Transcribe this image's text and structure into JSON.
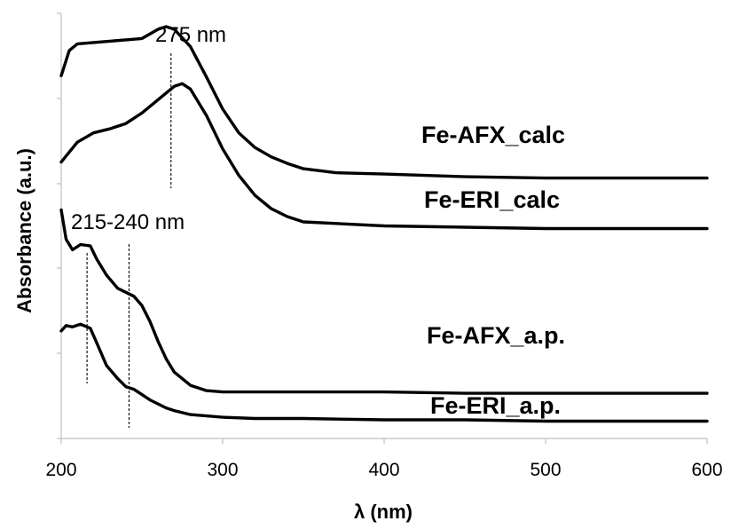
{
  "chart_data": {
    "type": "line",
    "xlabel": "λ (nm)",
    "ylabel": "Absorbance (a.u.)",
    "xlim": [
      200,
      600
    ],
    "x_ticks": [
      "200",
      "300",
      "400",
      "500",
      "600"
    ],
    "y_ticks_labeled": false,
    "grid": false,
    "series": [
      {
        "name": "Fe-AFX_calc",
        "x": [
          200,
          205,
          210,
          220,
          230,
          240,
          250,
          260,
          265,
          270,
          280,
          290,
          300,
          310,
          320,
          330,
          340,
          350,
          370,
          400,
          450,
          500,
          550,
          600
        ],
        "y": [
          2.63,
          2.82,
          2.87,
          2.88,
          2.89,
          2.9,
          2.91,
          2.98,
          3.0,
          2.98,
          2.85,
          2.62,
          2.38,
          2.2,
          2.09,
          2.02,
          1.97,
          1.93,
          1.9,
          1.89,
          1.87,
          1.86,
          1.86,
          1.86
        ]
      },
      {
        "name": "Fe-ERI_calc",
        "x": [
          200,
          210,
          220,
          230,
          240,
          250,
          260,
          270,
          275,
          280,
          290,
          300,
          310,
          320,
          330,
          340,
          350,
          400,
          450,
          500,
          550,
          600
        ],
        "y": [
          1.98,
          2.13,
          2.2,
          2.23,
          2.27,
          2.35,
          2.45,
          2.55,
          2.57,
          2.53,
          2.33,
          2.08,
          1.88,
          1.73,
          1.63,
          1.57,
          1.53,
          1.5,
          1.49,
          1.48,
          1.48,
          1.48
        ]
      },
      {
        "name": "Fe-AFX_a.p.",
        "x": [
          200,
          203,
          207,
          212,
          218,
          222,
          228,
          235,
          240,
          245,
          250,
          255,
          260,
          265,
          270,
          280,
          290,
          300,
          320,
          350,
          400,
          450,
          500,
          550,
          600
        ],
        "y": [
          1.62,
          1.4,
          1.32,
          1.36,
          1.35,
          1.25,
          1.13,
          1.03,
          1.0,
          0.97,
          0.9,
          0.78,
          0.63,
          0.5,
          0.4,
          0.3,
          0.26,
          0.25,
          0.25,
          0.25,
          0.25,
          0.24,
          0.24,
          0.24,
          0.24
        ]
      },
      {
        "name": "Fe-ERI_a.p.",
        "x": [
          200,
          203,
          207,
          212,
          218,
          222,
          228,
          235,
          240,
          245,
          250,
          255,
          260,
          265,
          270,
          280,
          290,
          300,
          320,
          350,
          400,
          450,
          500,
          550,
          600
        ],
        "y": [
          0.71,
          0.75,
          0.74,
          0.76,
          0.73,
          0.62,
          0.45,
          0.35,
          0.29,
          0.27,
          0.23,
          0.19,
          0.16,
          0.13,
          0.11,
          0.08,
          0.07,
          0.06,
          0.05,
          0.05,
          0.04,
          0.04,
          0.03,
          0.03,
          0.03
        ]
      }
    ],
    "annotations": [
      {
        "text": "275 nm",
        "x_lines": [
          268
        ]
      },
      {
        "text": "215-240 nm",
        "x_lines": [
          216,
          242
        ]
      }
    ]
  }
}
